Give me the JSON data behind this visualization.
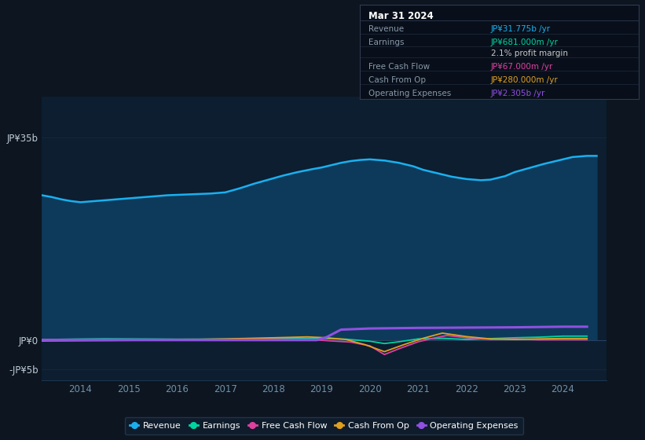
{
  "background_color": "#0c1520",
  "chart_bg_color": "#0c1e30",
  "ylabel_top": "JP¥35b",
  "ylabel_zero": "JP¥0",
  "ylabel_neg": "-JP¥5b",
  "ylim": [
    -7000000000.0,
    42000000000.0
  ],
  "ytick_vals": [
    35000000000,
    0,
    -5000000000
  ],
  "xlim_start": 2013.2,
  "xlim_end": 2024.9,
  "xtick_years": [
    2014,
    2015,
    2016,
    2017,
    2018,
    2019,
    2020,
    2021,
    2022,
    2023,
    2024
  ],
  "grid_color": "#1e3550",
  "info_box": {
    "bg_color": "#080f1a",
    "border_color": "#303a50",
    "title": "Mar 31 2024",
    "rows": [
      {
        "label": "Revenue",
        "value": "JP¥31.775b /yr",
        "value_color": "#1ab0f0"
      },
      {
        "label": "Earnings",
        "value": "JP¥681.000m /yr",
        "value_color": "#00d4a0"
      },
      {
        "label": "",
        "value": "2.1% profit margin",
        "value_color": "#c8c8c8"
      },
      {
        "label": "Free Cash Flow",
        "value": "JP¥67.000m /yr",
        "value_color": "#e040a0"
      },
      {
        "label": "Cash From Op",
        "value": "JP¥280.000m /yr",
        "value_color": "#e0a020"
      },
      {
        "label": "Operating Expenses",
        "value": "JP¥2.305b /yr",
        "value_color": "#9050e0"
      }
    ]
  },
  "legend": [
    {
      "label": "Revenue",
      "color": "#1ab0f0"
    },
    {
      "label": "Earnings",
      "color": "#00d4a0"
    },
    {
      "label": "Free Cash Flow",
      "color": "#e040a0"
    },
    {
      "label": "Cash From Op",
      "color": "#e0a020"
    },
    {
      "label": "Operating Expenses",
      "color": "#9050e0"
    }
  ],
  "revenue_x": [
    2013.2,
    2013.4,
    2013.6,
    2013.8,
    2014.0,
    2014.3,
    2014.6,
    2014.9,
    2015.2,
    2015.5,
    2015.8,
    2016.1,
    2016.4,
    2016.7,
    2017.0,
    2017.3,
    2017.6,
    2017.9,
    2018.2,
    2018.5,
    2018.8,
    2019.0,
    2019.2,
    2019.4,
    2019.6,
    2019.8,
    2020.0,
    2020.3,
    2020.6,
    2020.9,
    2021.1,
    2021.4,
    2021.7,
    2022.0,
    2022.3,
    2022.5,
    2022.8,
    2023.0,
    2023.3,
    2023.6,
    2023.9,
    2024.2,
    2024.5,
    2024.7
  ],
  "revenue_y": [
    25000000000.0,
    24700000000.0,
    24300000000.0,
    24000000000.0,
    23800000000.0,
    24000000000.0,
    24200000000.0,
    24400000000.0,
    24600000000.0,
    24800000000.0,
    25000000000.0,
    25100000000.0,
    25200000000.0,
    25300000000.0,
    25500000000.0,
    26200000000.0,
    27000000000.0,
    27700000000.0,
    28400000000.0,
    29000000000.0,
    29500000000.0,
    29800000000.0,
    30200000000.0,
    30600000000.0,
    30900000000.0,
    31100000000.0,
    31200000000.0,
    31000000000.0,
    30600000000.0,
    30000000000.0,
    29400000000.0,
    28800000000.0,
    28200000000.0,
    27800000000.0,
    27600000000.0,
    27700000000.0,
    28300000000.0,
    29000000000.0,
    29700000000.0,
    30400000000.0,
    31000000000.0,
    31600000000.0,
    31800000000.0,
    31800000000.0
  ],
  "earnings_x": [
    2013.2,
    2013.5,
    2014.0,
    2014.5,
    2015.0,
    2015.5,
    2016.0,
    2016.5,
    2017.0,
    2017.5,
    2018.0,
    2018.5,
    2019.0,
    2019.5,
    2020.0,
    2020.3,
    2020.6,
    2021.0,
    2021.5,
    2022.0,
    2022.5,
    2023.0,
    2023.5,
    2024.0,
    2024.5
  ],
  "earnings_y": [
    100000000.0,
    120000000.0,
    180000000.0,
    220000000.0,
    200000000.0,
    180000000.0,
    150000000.0,
    160000000.0,
    180000000.0,
    220000000.0,
    280000000.0,
    320000000.0,
    280000000.0,
    150000000.0,
    -200000000.0,
    -600000000.0,
    -300000000.0,
    200000000.0,
    300000000.0,
    100000000.0,
    250000000.0,
    400000000.0,
    500000000.0,
    681000000.0,
    681000000.0
  ],
  "fcf_x": [
    2013.2,
    2014.0,
    2015.0,
    2016.0,
    2017.0,
    2018.0,
    2018.8,
    2019.2,
    2019.6,
    2020.0,
    2020.3,
    2020.6,
    2021.0,
    2021.3,
    2021.6,
    2022.0,
    2022.5,
    2023.0,
    2023.5,
    2024.0,
    2024.5
  ],
  "fcf_y": [
    50000000.0,
    50000000.0,
    50000000.0,
    50000000.0,
    100000000.0,
    150000000.0,
    80000000.0,
    -150000000.0,
    -350000000.0,
    -1000000000.0,
    -2500000000.0,
    -1500000000.0,
    -300000000.0,
    300000000.0,
    800000000.0,
    400000000.0,
    100000000.0,
    200000000.0,
    50000000.0,
    67000000.0,
    67000000.0
  ],
  "cashop_x": [
    2013.2,
    2014.0,
    2015.0,
    2016.0,
    2017.0,
    2018.0,
    2018.7,
    2019.1,
    2019.5,
    2019.9,
    2020.3,
    2020.7,
    2021.1,
    2021.5,
    2022.0,
    2022.5,
    2023.0,
    2023.5,
    2024.0,
    2024.5
  ],
  "cashop_y": [
    -150000000.0,
    -100000000.0,
    -50000000.0,
    50000000.0,
    200000000.0,
    400000000.0,
    550000000.0,
    400000000.0,
    100000000.0,
    -800000000.0,
    -2000000000.0,
    -800000000.0,
    300000000.0,
    1200000000.0,
    600000000.0,
    200000000.0,
    100000000.0,
    200000000.0,
    280000000.0,
    280000000.0
  ],
  "opex_x": [
    2013.2,
    2014.0,
    2015.0,
    2016.0,
    2017.0,
    2018.0,
    2018.9,
    2019.1,
    2019.4,
    2020.0,
    2021.0,
    2022.0,
    2023.0,
    2024.0,
    2024.5
  ],
  "opex_y": [
    0,
    0,
    0,
    0,
    0,
    0,
    0,
    500000000.0,
    1800000000.0,
    2000000000.0,
    2100000000.0,
    2150000000.0,
    2200000000.0,
    2305000000.0,
    2305000000.0
  ],
  "revenue_color": "#1ab0f0",
  "revenue_fill": "#0d3a5a",
  "earnings_color": "#00d4a0",
  "fcf_color": "#e040a0",
  "cashop_color": "#e0a020",
  "opex_color": "#9050e0"
}
